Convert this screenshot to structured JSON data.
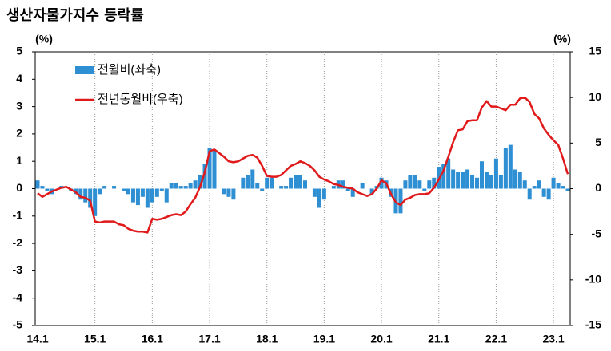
{
  "chart_data": {
    "type": "bar_line",
    "title": "생산자물가지수 등락률",
    "ylabel": "(%)",
    "y2label": "(%)",
    "categories": [
      "14.1",
      null,
      null,
      null,
      null,
      null,
      null,
      null,
      null,
      null,
      null,
      null,
      "15.1",
      null,
      null,
      null,
      null,
      null,
      null,
      null,
      null,
      null,
      null,
      null,
      "16.1",
      null,
      null,
      null,
      null,
      null,
      null,
      null,
      null,
      null,
      null,
      null,
      "17.1",
      null,
      null,
      null,
      null,
      null,
      null,
      null,
      null,
      null,
      null,
      null,
      "18.1",
      null,
      null,
      null,
      null,
      null,
      null,
      null,
      null,
      null,
      null,
      null,
      "19.1",
      null,
      null,
      null,
      null,
      null,
      null,
      null,
      null,
      null,
      null,
      null,
      "20.1",
      null,
      null,
      null,
      null,
      null,
      null,
      null,
      null,
      null,
      null,
      null,
      "21.1",
      null,
      null,
      null,
      null,
      null,
      null,
      null,
      null,
      null,
      null,
      null,
      "22.1",
      null,
      null,
      null,
      null,
      null,
      null,
      null,
      null,
      null,
      null,
      null,
      "23.1",
      null,
      null,
      null
    ],
    "series": [
      {
        "name": "전월비(좌축)",
        "color": "#2f8fd3",
        "type": "bar",
        "axis": "y",
        "values": [
          0.3,
          0.1,
          -0.1,
          -0.2,
          0,
          0.1,
          0,
          -0.1,
          -0.2,
          -0.4,
          -0.5,
          -0.7,
          -1.0,
          -0.2,
          0.1,
          0,
          0.1,
          0,
          -0.1,
          -0.2,
          -0.5,
          -0.6,
          -0.3,
          -0.7,
          -0.5,
          -0.3,
          -0.1,
          -0.5,
          0.2,
          0.2,
          0.1,
          0.1,
          0.2,
          0.3,
          0.5,
          0.9,
          1.5,
          1.4,
          0,
          -0.2,
          -0.3,
          -0.4,
          0,
          0.4,
          0.5,
          0.7,
          0.2,
          -0.1,
          0.4,
          0.4,
          0,
          0.1,
          0.1,
          0.4,
          0.5,
          0.5,
          0.3,
          0,
          -0.3,
          -0.7,
          -0.4,
          0,
          0.1,
          0.3,
          0.3,
          -0.1,
          -0.3,
          0,
          0.2,
          0,
          -0.2,
          0.1,
          0.4,
          0.3,
          -0.3,
          -0.9,
          -0.9,
          0.3,
          0.5,
          0.5,
          0.3,
          -0.1,
          0.3,
          0.4,
          0.8,
          0.9,
          1.1,
          0.7,
          0.6,
          0.6,
          0.7,
          0.5,
          0.4,
          1.0,
          0.6,
          0.5,
          1.1,
          0.5,
          1.5,
          1.6,
          0.7,
          0.6,
          0.3,
          -0.4,
          0.1,
          0.3,
          -0.3,
          -0.4,
          0.4,
          0.2,
          0.1,
          -0.1
        ]
      },
      {
        "name": "전년동월비(우축)",
        "color": "#e0191b",
        "type": "line",
        "axis": "y2",
        "values": [
          -0.5,
          -0.9,
          -0.6,
          -0.3,
          -0.1,
          0.1,
          0.2,
          -0.1,
          -0.4,
          -0.9,
          -1.0,
          -1.3,
          -3.6,
          -3.7,
          -3.6,
          -3.6,
          -3.6,
          -3.9,
          -4.0,
          -4.4,
          -4.6,
          -4.7,
          -4.7,
          -4.8,
          -3.3,
          -3.4,
          -3.3,
          -3.1,
          -2.9,
          -2.8,
          -2.9,
          -2.5,
          -1.7,
          -1.0,
          0.2,
          1.8,
          4.1,
          4.3,
          3.9,
          3.5,
          3.0,
          2.9,
          3.0,
          3.3,
          3.6,
          3.7,
          3.4,
          2.5,
          1.4,
          1.3,
          1.3,
          1.5,
          2.0,
          2.5,
          2.7,
          3.0,
          2.8,
          2.5,
          2.0,
          1.3,
          1.0,
          0.8,
          0.5,
          0.4,
          0.2,
          0.1,
          0.0,
          -0.4,
          -0.6,
          -0.8,
          -0.6,
          0.0,
          0.9,
          0.6,
          -0.6,
          -1.5,
          -1.8,
          -1.2,
          -1.0,
          -0.7,
          -0.6,
          -0.6,
          -0.5,
          0.1,
          1.0,
          2.0,
          3.5,
          5.1,
          6.4,
          6.5,
          7.4,
          7.5,
          7.5,
          8.9,
          9.6,
          9.0,
          9.0,
          8.8,
          8.6,
          9.2,
          9.2,
          9.9,
          10.0,
          9.5,
          8.2,
          7.7,
          6.6,
          5.9,
          5.3,
          4.8,
          3.3,
          1.6
        ]
      }
    ],
    "ylim": [
      -5,
      5
    ],
    "yticks": [
      -5,
      -4,
      -3,
      -2,
      -1,
      0,
      1,
      2,
      3,
      4,
      5
    ],
    "y2lim": [
      -15,
      15
    ],
    "y2ticks": [
      -15,
      -10,
      -5,
      0,
      5,
      10,
      15
    ],
    "xgrid": true
  }
}
